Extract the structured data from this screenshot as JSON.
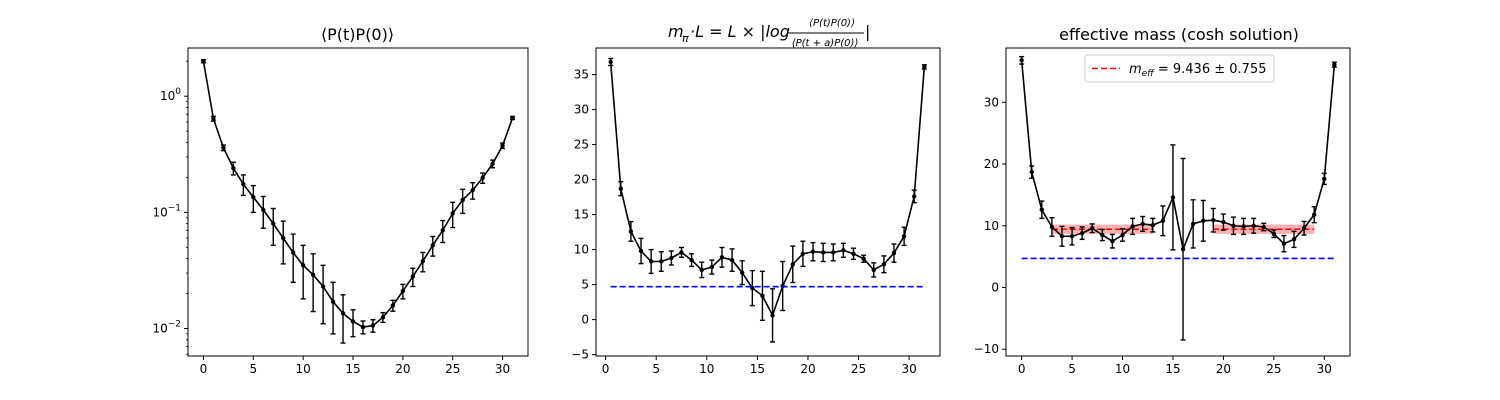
{
  "chart_data": [
    {
      "type": "line",
      "title": "⟨P(t)P(0)⟩",
      "xlabel": "",
      "ylabel": "",
      "xlim": [
        -1.55,
        32.55
      ],
      "ylim": [
        0.0058,
        2.6
      ],
      "yscale": "log",
      "xticks": [
        0,
        5,
        10,
        15,
        20,
        25,
        30
      ],
      "yticks": [
        {
          "value": 0.01,
          "base": "10",
          "exp": "−2"
        },
        {
          "value": 0.1,
          "base": "10",
          "exp": "−1"
        },
        {
          "value": 1,
          "base": "10",
          "exp": "0"
        }
      ],
      "series": [
        {
          "color": "#000000",
          "x": [
            0,
            1,
            2,
            3,
            4,
            5,
            6,
            7,
            8,
            9,
            10,
            11,
            12,
            13,
            14,
            15,
            16,
            17,
            18,
            19,
            20,
            21,
            22,
            23,
            24,
            25,
            26,
            27,
            28,
            29,
            30,
            31
          ],
          "y": [
            2.0,
            0.64,
            0.36,
            0.24,
            0.175,
            0.135,
            0.105,
            0.08,
            0.06,
            0.045,
            0.035,
            0.029,
            0.023,
            0.017,
            0.0135,
            0.0115,
            0.0103,
            0.0106,
            0.0125,
            0.0158,
            0.021,
            0.028,
            0.038,
            0.052,
            0.07,
            0.098,
            0.128,
            0.155,
            0.198,
            0.262,
            0.375,
            0.65
          ],
          "err": [
            0.06,
            0.03,
            0.02,
            0.03,
            0.035,
            0.035,
            0.032,
            0.028,
            0.024,
            0.02,
            0.017,
            0.015,
            0.012,
            0.008,
            0.006,
            0.003,
            0.0013,
            0.0013,
            0.0012,
            0.0017,
            0.003,
            0.005,
            0.0072,
            0.01,
            0.015,
            0.024,
            0.03,
            0.025,
            0.02,
            0.02,
            0.02,
            0.02
          ]
        }
      ]
    },
    {
      "type": "line",
      "title": "mπ·L = L × |log ⟨P(t)P(0)⟩ / ⟨P(t+a)P(0)⟩|",
      "title_parts": {
        "m": "m",
        "sub": "π",
        "mid": "·L = L × |log",
        "num": "⟨P(t)P(0)⟩",
        "den": "⟨P(t + a)P(0)⟩",
        "end": "|"
      },
      "xlabel": "",
      "ylabel": "",
      "xlim": [
        -0.95,
        33.05
      ],
      "ylim": [
        -5.2,
        38.8
      ],
      "xticks": [
        0,
        5,
        10,
        15,
        20,
        25,
        30
      ],
      "yticks": [
        -5,
        0,
        5,
        10,
        15,
        20,
        25,
        30,
        35
      ],
      "series": [
        {
          "color": "#000000",
          "x": [
            0.5,
            1.5,
            2.5,
            3.5,
            4.5,
            5.5,
            6.5,
            7.5,
            8.5,
            9.5,
            10.5,
            11.5,
            12.5,
            13.5,
            14.5,
            15.5,
            16.5,
            17.5,
            18.5,
            19.5,
            20.5,
            21.5,
            22.5,
            23.5,
            24.5,
            25.5,
            26.5,
            27.5,
            28.5,
            29.5,
            30.5,
            31.5
          ],
          "y": [
            36.8,
            18.7,
            12.6,
            9.8,
            8.3,
            8.3,
            8.8,
            9.6,
            8.5,
            7.1,
            7.5,
            8.9,
            8.5,
            6.7,
            4.5,
            3.4,
            0.6,
            4.8,
            7.9,
            9.4,
            9.7,
            9.6,
            9.6,
            9.9,
            9.4,
            8.7,
            7.1,
            7.9,
            9.5,
            11.9,
            17.6,
            36.1
          ],
          "err": [
            0.5,
            1.0,
            1.4,
            1.8,
            1.7,
            1.4,
            1.0,
            0.7,
            0.9,
            1.1,
            1.0,
            1.4,
            1.6,
            1.7,
            2.5,
            3.5,
            3.8,
            3.5,
            2.6,
            1.8,
            1.3,
            1.3,
            1.2,
            1.0,
            0.8,
            0.5,
            1.0,
            1.2,
            1.3,
            1.3,
            0.9,
            0.3
          ]
        },
        {
          "name": "",
          "color": "#0000ff",
          "dashed": true,
          "x": [
            0.5,
            31.5
          ],
          "y": [
            4.7,
            4.7
          ]
        }
      ]
    },
    {
      "type": "line",
      "title": "effective mass (cosh solution)",
      "xlabel": "",
      "ylabel": "",
      "xlim": [
        -1.55,
        32.55
      ],
      "ylim": [
        -11.1,
        38.8
      ],
      "xticks": [
        0,
        5,
        10,
        15,
        20,
        25,
        30
      ],
      "yticks": [
        -10,
        0,
        10,
        20,
        30
      ],
      "legend": {
        "placement": "top-center",
        "label_base": "m",
        "label_sub": "eff",
        "label_rest": " = 9.436 ± 0.755",
        "value": 9.436,
        "error": 0.755
      },
      "fit_band": {
        "color": "#ff0000",
        "y": 9.436,
        "err": 0.755,
        "ranges": [
          [
            3,
            13
          ],
          [
            19,
            29
          ]
        ]
      },
      "series": [
        {
          "color": "#000000",
          "x": [
            0,
            1,
            2,
            3,
            4,
            5,
            6,
            7,
            8,
            9,
            10,
            11,
            12,
            13,
            14,
            15,
            16,
            17,
            18,
            19,
            20,
            21,
            22,
            23,
            24,
            25,
            26,
            27,
            28,
            29,
            30,
            31
          ],
          "y": [
            36.8,
            18.7,
            12.6,
            9.8,
            8.3,
            8.3,
            8.8,
            9.6,
            8.5,
            7.5,
            8.5,
            9.9,
            10.3,
            10.1,
            10.8,
            14.6,
            6.2,
            10.3,
            10.8,
            10.9,
            10.6,
            10.0,
            9.9,
            10.0,
            9.8,
            8.7,
            7.1,
            7.8,
            9.6,
            11.8,
            17.6,
            36.1
          ],
          "err": [
            0.6,
            1.0,
            1.4,
            1.5,
            1.6,
            1.4,
            1.0,
            0.7,
            0.9,
            1.1,
            1.0,
            1.3,
            1.2,
            1.1,
            2.4,
            8.5,
            14.7,
            3.9,
            3.3,
            1.9,
            1.3,
            1.4,
            1.3,
            1.2,
            0.6,
            0.6,
            1.3,
            1.3,
            1.1,
            1.3,
            0.9,
            0.4
          ]
        },
        {
          "name": "",
          "color": "#0000ff",
          "dashed": true,
          "x": [
            0,
            31
          ],
          "y": [
            4.7,
            4.7
          ]
        }
      ]
    }
  ]
}
